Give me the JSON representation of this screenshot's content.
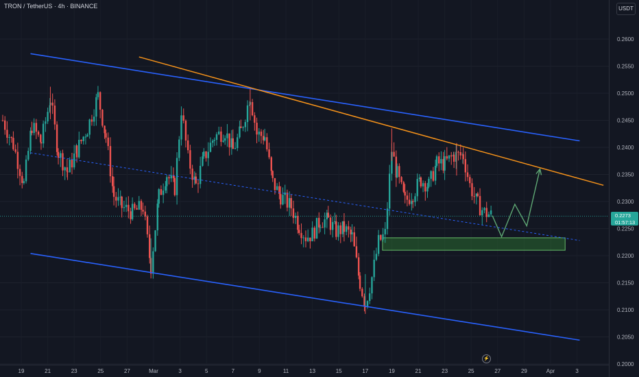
{
  "header": {
    "symbol_line": "TRON / TetherUS · 4h · BINANCE"
  },
  "currency_button": "USDT",
  "last_price": {
    "value": "0.2273",
    "countdown": "01:57:13"
  },
  "colors": {
    "background": "#131722",
    "up": "#26a69a",
    "down": "#ef5350",
    "channel": "#2962ff",
    "trendline": "#f7931a",
    "projection": "#5fa874",
    "zone": "#2e7d32"
  },
  "icons": {
    "event_marker": "flash-icon"
  },
  "chart_data": {
    "type": "candlestick",
    "y_axis": {
      "range": [
        0.2,
        0.2656
      ],
      "ticks": [
        "0.2600",
        "0.2550",
        "0.2500",
        "0.2450",
        "0.2400",
        "0.2350",
        "0.2300",
        "0.2250",
        "0.2200",
        "0.2150",
        "0.2100",
        "0.2050",
        "0.2000"
      ]
    },
    "x_axis": {
      "range_days": [
        0,
        43.7
      ],
      "ticks": [
        {
          "label": "19",
          "day": 0
        },
        {
          "label": "21",
          "day": 2
        },
        {
          "label": "23",
          "day": 4
        },
        {
          "label": "25",
          "day": 6
        },
        {
          "label": "27",
          "day": 8
        },
        {
          "label": "Mar",
          "day": 10
        },
        {
          "label": "3",
          "day": 12
        },
        {
          "label": "5",
          "day": 14
        },
        {
          "label": "7",
          "day": 16
        },
        {
          "label": "9",
          "day": 18
        },
        {
          "label": "11",
          "day": 20
        },
        {
          "label": "13",
          "day": 22
        },
        {
          "label": "15",
          "day": 24
        },
        {
          "label": "17",
          "day": 26
        },
        {
          "label": "19",
          "day": 28
        },
        {
          "label": "21",
          "day": 30
        },
        {
          "label": "23",
          "day": 32
        },
        {
          "label": "25",
          "day": 34
        },
        {
          "label": "27",
          "day": 36
        },
        {
          "label": "29",
          "day": 38
        },
        {
          "label": "Apr",
          "day": 40
        },
        {
          "label": "3",
          "day": 42
        }
      ]
    },
    "price_path": [
      [
        -1.4,
        0.245
      ],
      [
        -0.6,
        0.2405
      ],
      [
        0.2,
        0.2332
      ],
      [
        0.8,
        0.244
      ],
      [
        1.5,
        0.241
      ],
      [
        2.2,
        0.249
      ],
      [
        2.8,
        0.239
      ],
      [
        3.5,
        0.2355
      ],
      [
        4.2,
        0.2395
      ],
      [
        5.0,
        0.2435
      ],
      [
        5.8,
        0.2495
      ],
      [
        6.4,
        0.242
      ],
      [
        7.0,
        0.231
      ],
      [
        7.6,
        0.229
      ],
      [
        8.4,
        0.228
      ],
      [
        9.2,
        0.229
      ],
      [
        9.8,
        0.218
      ],
      [
        10.4,
        0.231
      ],
      [
        11.0,
        0.235
      ],
      [
        11.6,
        0.2325
      ],
      [
        12.1,
        0.247
      ],
      [
        12.6,
        0.238
      ],
      [
        13.2,
        0.233
      ],
      [
        13.8,
        0.238
      ],
      [
        14.6,
        0.242
      ],
      [
        15.4,
        0.243
      ],
      [
        16.0,
        0.2395
      ],
      [
        16.6,
        0.243
      ],
      [
        17.3,
        0.2495
      ],
      [
        17.8,
        0.2425
      ],
      [
        18.4,
        0.242
      ],
      [
        19.0,
        0.2335
      ],
      [
        19.6,
        0.231
      ],
      [
        20.4,
        0.229
      ],
      [
        21.0,
        0.2255
      ],
      [
        21.5,
        0.2235
      ],
      [
        22.0,
        0.224
      ],
      [
        22.6,
        0.2265
      ],
      [
        23.2,
        0.2265
      ],
      [
        23.8,
        0.2245
      ],
      [
        24.4,
        0.225
      ],
      [
        25.0,
        0.2235
      ],
      [
        25.6,
        0.215
      ],
      [
        26.0,
        0.211
      ],
      [
        26.5,
        0.216
      ],
      [
        27.0,
        0.2225
      ],
      [
        27.5,
        0.224
      ],
      [
        28.0,
        0.2395
      ],
      [
        28.4,
        0.235
      ],
      [
        29.0,
        0.23
      ],
      [
        29.6,
        0.2315
      ],
      [
        30.2,
        0.234
      ],
      [
        30.8,
        0.233
      ],
      [
        31.4,
        0.237
      ],
      [
        32.0,
        0.237
      ],
      [
        32.7,
        0.2385
      ],
      [
        33.4,
        0.2385
      ],
      [
        33.9,
        0.233
      ],
      [
        34.5,
        0.2295
      ],
      [
        35.0,
        0.228
      ],
      [
        35.6,
        0.2274
      ]
    ],
    "projection_path": [
      [
        35.6,
        0.2274
      ],
      [
        36.3,
        0.2235
      ],
      [
        37.3,
        0.2295
      ],
      [
        38.2,
        0.2255
      ],
      [
        39.2,
        0.236
      ]
    ],
    "upper_channel": [
      [
        0.7,
        0.2573
      ],
      [
        42.2,
        0.2412
      ]
    ],
    "lower_channel": [
      [
        0.7,
        0.2204
      ],
      [
        42.2,
        0.2044
      ]
    ],
    "mid_channel": [
      [
        0.7,
        0.239
      ],
      [
        42.2,
        0.2228
      ]
    ],
    "descending_trendline": [
      [
        8.9,
        0.2567
      ],
      [
        44.0,
        0.233
      ]
    ],
    "support_zone": {
      "day_start": 27.3,
      "day_end": 41.1,
      "price_top": 0.2233,
      "price_bottom": 0.221
    },
    "last_price_level": 0.2273
  }
}
